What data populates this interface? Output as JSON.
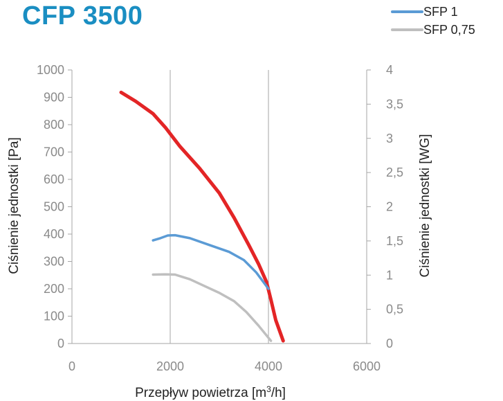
{
  "title": "CFP 3500",
  "legend": [
    {
      "label": "SFP 1",
      "color": "#5b9bd5"
    },
    {
      "label": "SFP 0,75",
      "color": "#bfbfbf"
    }
  ],
  "chart_data": {
    "type": "line",
    "title": "CFP 3500",
    "xlabel": "Przepływ powietrza [m³/h]",
    "ylabel": "Ciśnienie jednostki [Pa]",
    "y2label": "Ciśnienie jednostki [WG]",
    "xlim": [
      0,
      6000
    ],
    "ylim": [
      0,
      1000
    ],
    "y2lim": [
      0,
      4
    ],
    "x_ticks": [
      "0",
      "2000",
      "4000",
      "6000"
    ],
    "y_ticks": [
      "0",
      "100",
      "200",
      "300",
      "400",
      "500",
      "600",
      "700",
      "800",
      "900",
      "1000"
    ],
    "y2_ticks": [
      "0",
      "0,5",
      "1",
      "1,5",
      "2",
      "2,5",
      "3",
      "3,5",
      "4"
    ],
    "grid": {
      "vertical": true,
      "horizontal": false
    },
    "legend_position": "top-right",
    "series": [
      {
        "color": "#e32526",
        "x": [
          1000,
          1300,
          1650,
          1900,
          2200,
          2600,
          3000,
          3300,
          3600,
          3800,
          3960,
          4050,
          4150,
          4300
        ],
        "y": [
          918,
          885,
          840,
          790,
          720,
          640,
          550,
          460,
          360,
          290,
          225,
          160,
          85,
          10
        ]
      },
      {
        "name": "SFP 1",
        "color": "#5b9bd5",
        "x": [
          1650,
          1800,
          1950,
          2100,
          2400,
          2800,
          3200,
          3500,
          3750,
          4000
        ],
        "y": [
          377,
          385,
          395,
          396,
          385,
          360,
          335,
          305,
          260,
          200
        ]
      },
      {
        "name": "SFP 0,75",
        "color": "#bfbfbf",
        "x": [
          1650,
          1900,
          2100,
          2400,
          2700,
          3000,
          3300,
          3550,
          3800,
          4050
        ],
        "y": [
          252,
          253,
          252,
          235,
          210,
          185,
          155,
          115,
          65,
          10
        ]
      }
    ]
  }
}
